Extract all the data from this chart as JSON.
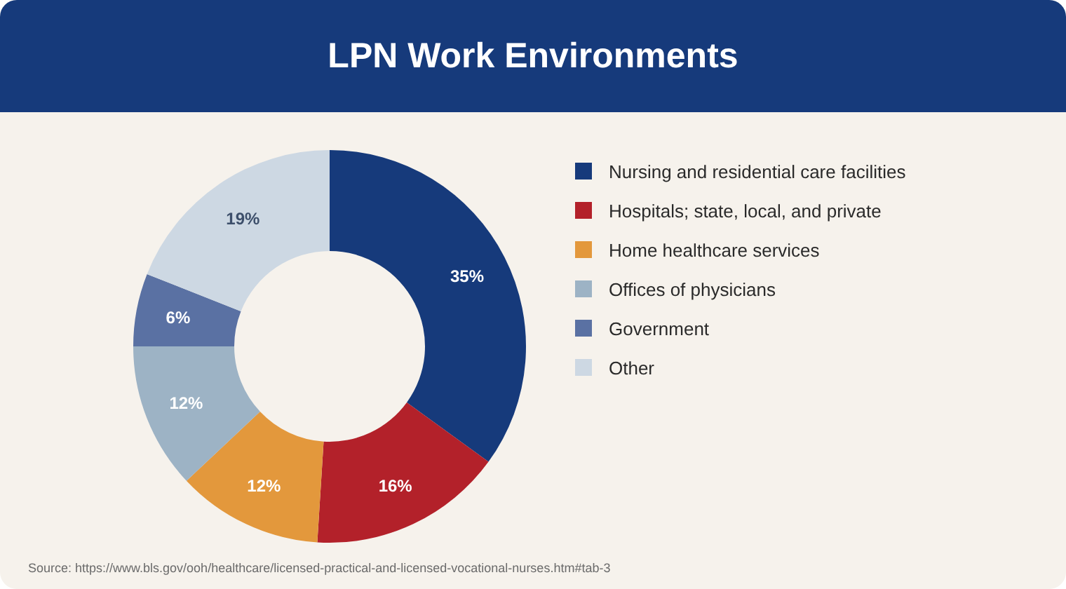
{
  "chart_data": {
    "type": "donut",
    "title": "LPN Work Environments",
    "categories": [
      "Nursing and residential care facilities",
      "Hospitals; state, local, and private",
      "Home healthcare services",
      "Offices of physicians",
      "Government",
      "Other"
    ],
    "values": [
      35,
      16,
      12,
      12,
      6,
      19
    ],
    "colors": [
      "#163a7b",
      "#b3212a",
      "#e3983c",
      "#9db3c5",
      "#5a71a3",
      "#cdd8e3"
    ],
    "value_labels": [
      "35%",
      "16%",
      "12%",
      "12%",
      "6%",
      "19%"
    ],
    "legend": "right",
    "annotations": [
      "Source: https://www.bls.gov/ooh/healthcare/licensed-practical-and-licensed-vocational-nurses.htm#tab-3"
    ]
  }
}
